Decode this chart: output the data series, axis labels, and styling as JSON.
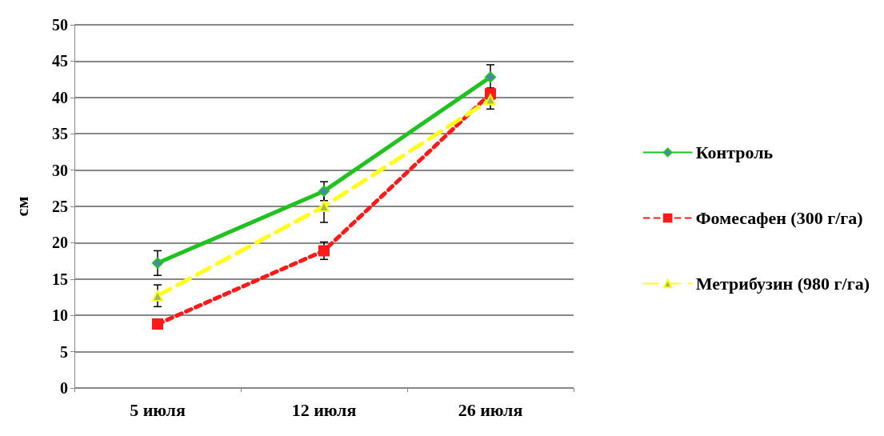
{
  "chart_data": {
    "type": "line",
    "ylabel": "см",
    "categories": [
      "5 июля",
      "12 июля",
      "26 июля"
    ],
    "series": [
      {
        "name": "Контроль",
        "color": "#1fc21f",
        "values": [
          17.2,
          27.1,
          42.8
        ],
        "errors": [
          1.7,
          1.3,
          1.7
        ],
        "marker": "diamond",
        "line_style": "solid"
      },
      {
        "name": "Фомесафен (300 г/га)",
        "color": "#ff1a1a",
        "values": [
          8.8,
          18.9,
          40.5
        ],
        "errors": [
          null,
          1.2,
          0.8
        ],
        "marker": "square",
        "line_style": "dotted"
      },
      {
        "name": "Метрибузин (980 г/га)",
        "color": "#ffff1a",
        "values": [
          12.7,
          25.0,
          39.7
        ],
        "errors": [
          1.5,
          2.2,
          1.3
        ],
        "marker": "triangle",
        "line_style": "dashed"
      }
    ],
    "ylim": [
      0,
      50
    ],
    "yticks": [
      0,
      5,
      10,
      15,
      20,
      25,
      30,
      35,
      40,
      45,
      50
    ],
    "grid": "y",
    "legend": "right"
  }
}
